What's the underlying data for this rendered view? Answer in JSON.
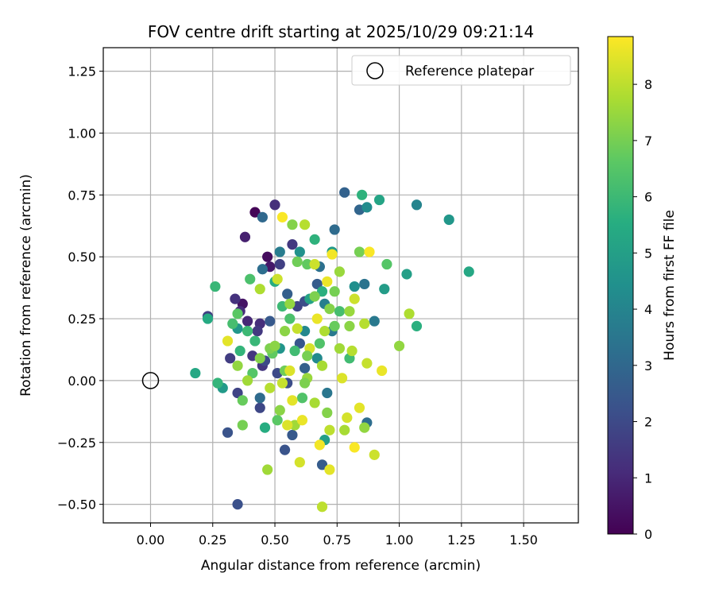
{
  "chart_data": {
    "type": "scatter",
    "title": "FOV centre drift starting at 2025/10/29 09:21:14",
    "xlabel": "Angular distance from reference (arcmin)",
    "ylabel": "Rotation from reference (arcmin)",
    "xlim": [
      -0.19,
      1.72
    ],
    "ylim": [
      -0.575,
      1.345
    ],
    "xticks": [
      0.0,
      0.25,
      0.5,
      0.75,
      1.0,
      1.25,
      1.5
    ],
    "xtick_labels": [
      "0.00",
      "0.25",
      "0.50",
      "0.75",
      "1.00",
      "1.25",
      "1.50"
    ],
    "yticks": [
      -0.5,
      -0.25,
      0.0,
      0.25,
      0.5,
      0.75,
      1.0,
      1.25
    ],
    "ytick_labels": [
      "−0.50",
      "−0.25",
      "0.00",
      "0.25",
      "0.50",
      "0.75",
      "1.00",
      "1.25"
    ],
    "grid": true,
    "legend": {
      "position": "top-right",
      "entries": [
        {
          "label": "Reference platepar",
          "marker": "open-circle"
        }
      ]
    },
    "reference_point": {
      "x": 0.0,
      "y": 0.0
    },
    "colorbar": {
      "label": "Hours from first FF file",
      "colormap": "viridis",
      "range": [
        0,
        8.85
      ],
      "ticks": [
        0,
        1,
        2,
        3,
        4,
        5,
        6,
        7,
        8
      ],
      "tick_labels": [
        "0",
        "1",
        "2",
        "3",
        "4",
        "5",
        "6",
        "7",
        "8"
      ]
    },
    "points": [
      {
        "x": 0.42,
        "y": 0.68,
        "t": 0.1
      },
      {
        "x": 0.47,
        "y": 0.5,
        "t": 0.3
      },
      {
        "x": 0.37,
        "y": 0.31,
        "t": 0.5
      },
      {
        "x": 0.48,
        "y": 0.46,
        "t": 0.6
      },
      {
        "x": 0.38,
        "y": 0.58,
        "t": 0.8
      },
      {
        "x": 0.39,
        "y": 0.24,
        "t": 1.0
      },
      {
        "x": 0.36,
        "y": 0.28,
        "t": 1.1
      },
      {
        "x": 0.5,
        "y": 0.71,
        "t": 1.2
      },
      {
        "x": 0.44,
        "y": 0.23,
        "t": 1.2
      },
      {
        "x": 0.34,
        "y": 0.33,
        "t": 1.3
      },
      {
        "x": 0.45,
        "y": 0.06,
        "t": 1.4
      },
      {
        "x": 0.41,
        "y": 0.1,
        "t": 1.4
      },
      {
        "x": 0.43,
        "y": 0.2,
        "t": 1.5
      },
      {
        "x": 0.57,
        "y": 0.55,
        "t": 1.5
      },
      {
        "x": 0.32,
        "y": 0.09,
        "t": 1.6
      },
      {
        "x": 0.23,
        "y": 0.26,
        "t": 1.7
      },
      {
        "x": 0.52,
        "y": 0.47,
        "t": 1.7
      },
      {
        "x": 0.35,
        "y": -0.05,
        "t": 1.8
      },
      {
        "x": 0.59,
        "y": 0.3,
        "t": 1.8
      },
      {
        "x": 0.44,
        "y": -0.11,
        "t": 1.9
      },
      {
        "x": 0.51,
        "y": 0.03,
        "t": 2.0
      },
      {
        "x": 0.46,
        "y": 0.08,
        "t": 2.0
      },
      {
        "x": 0.55,
        "y": -0.01,
        "t": 2.1
      },
      {
        "x": 0.62,
        "y": 0.32,
        "t": 2.1
      },
      {
        "x": 0.35,
        "y": -0.5,
        "t": 2.2
      },
      {
        "x": 0.54,
        "y": -0.28,
        "t": 2.3
      },
      {
        "x": 0.31,
        "y": -0.21,
        "t": 2.3
      },
      {
        "x": 0.6,
        "y": 0.15,
        "t": 2.4
      },
      {
        "x": 0.48,
        "y": 0.24,
        "t": 2.5
      },
      {
        "x": 0.57,
        "y": -0.22,
        "t": 2.5
      },
      {
        "x": 0.69,
        "y": -0.34,
        "t": 2.6
      },
      {
        "x": 0.67,
        "y": 0.39,
        "t": 2.6
      },
      {
        "x": 0.55,
        "y": 0.35,
        "t": 2.7
      },
      {
        "x": 0.62,
        "y": 0.05,
        "t": 2.7
      },
      {
        "x": 0.78,
        "y": 0.76,
        "t": 2.8
      },
      {
        "x": 0.84,
        "y": 0.69,
        "t": 2.9
      },
      {
        "x": 0.45,
        "y": 0.66,
        "t": 3.0
      },
      {
        "x": 0.74,
        "y": 0.61,
        "t": 3.1
      },
      {
        "x": 0.44,
        "y": -0.07,
        "t": 3.1
      },
      {
        "x": 0.45,
        "y": 0.45,
        "t": 3.2
      },
      {
        "x": 0.87,
        "y": -0.17,
        "t": 3.2
      },
      {
        "x": 0.68,
        "y": 0.46,
        "t": 3.3
      },
      {
        "x": 0.86,
        "y": 0.39,
        "t": 3.4
      },
      {
        "x": 0.71,
        "y": -0.05,
        "t": 3.5
      },
      {
        "x": 0.9,
        "y": 0.24,
        "t": 3.6
      },
      {
        "x": 0.73,
        "y": 0.2,
        "t": 3.6
      },
      {
        "x": 0.52,
        "y": 0.52,
        "t": 3.7
      },
      {
        "x": 0.7,
        "y": 0.31,
        "t": 3.8
      },
      {
        "x": 1.07,
        "y": 0.71,
        "t": 4.0
      },
      {
        "x": 0.62,
        "y": 0.2,
        "t": 4.1
      },
      {
        "x": 0.67,
        "y": 0.09,
        "t": 4.2
      },
      {
        "x": 0.87,
        "y": 0.7,
        "t": 4.3
      },
      {
        "x": 0.82,
        "y": 0.38,
        "t": 4.4
      },
      {
        "x": 0.6,
        "y": 0.52,
        "t": 4.5
      },
      {
        "x": 0.52,
        "y": 0.13,
        "t": 4.6
      },
      {
        "x": 1.2,
        "y": 0.65,
        "t": 4.7
      },
      {
        "x": 0.35,
        "y": 0.21,
        "t": 4.7
      },
      {
        "x": 0.29,
        "y": -0.03,
        "t": 4.8
      },
      {
        "x": 0.73,
        "y": 0.52,
        "t": 4.8
      },
      {
        "x": 0.94,
        "y": 0.37,
        "t": 4.9
      },
      {
        "x": 0.7,
        "y": -0.24,
        "t": 5.0
      },
      {
        "x": 1.03,
        "y": 0.43,
        "t": 5.0
      },
      {
        "x": 0.64,
        "y": 0.33,
        "t": 5.1
      },
      {
        "x": 0.92,
        "y": 0.73,
        "t": 5.2
      },
      {
        "x": 1.28,
        "y": 0.44,
        "t": 5.3
      },
      {
        "x": 0.18,
        "y": 0.03,
        "t": 5.3
      },
      {
        "x": 0.23,
        "y": 0.25,
        "t": 5.4
      },
      {
        "x": 0.46,
        "y": -0.19,
        "t": 5.5
      },
      {
        "x": 0.5,
        "y": 0.4,
        "t": 5.5
      },
      {
        "x": 0.69,
        "y": 0.36,
        "t": 5.6
      },
      {
        "x": 1.07,
        "y": 0.22,
        "t": 5.6
      },
      {
        "x": 0.66,
        "y": 0.57,
        "t": 5.7
      },
      {
        "x": 0.85,
        "y": 0.75,
        "t": 5.7
      },
      {
        "x": 0.27,
        "y": -0.01,
        "t": 5.8
      },
      {
        "x": 0.36,
        "y": 0.12,
        "t": 5.8
      },
      {
        "x": 0.42,
        "y": 0.16,
        "t": 5.9
      },
      {
        "x": 0.26,
        "y": 0.38,
        "t": 5.9
      },
      {
        "x": 0.39,
        "y": 0.2,
        "t": 6.0
      },
      {
        "x": 0.53,
        "y": 0.3,
        "t": 6.0
      },
      {
        "x": 0.58,
        "y": 0.12,
        "t": 6.1
      },
      {
        "x": 0.8,
        "y": 0.09,
        "t": 6.1
      },
      {
        "x": 0.76,
        "y": 0.28,
        "t": 6.2
      },
      {
        "x": 0.33,
        "y": 0.23,
        "t": 6.2
      },
      {
        "x": 0.4,
        "y": 0.41,
        "t": 6.3
      },
      {
        "x": 0.56,
        "y": 0.25,
        "t": 6.3
      },
      {
        "x": 0.61,
        "y": -0.07,
        "t": 6.4
      },
      {
        "x": 0.68,
        "y": 0.15,
        "t": 6.4
      },
      {
        "x": 0.41,
        "y": 0.03,
        "t": 6.5
      },
      {
        "x": 0.95,
        "y": 0.47,
        "t": 6.5
      },
      {
        "x": 0.51,
        "y": -0.16,
        "t": 6.6
      },
      {
        "x": 0.35,
        "y": 0.27,
        "t": 6.6
      },
      {
        "x": 0.49,
        "y": 0.11,
        "t": 6.7
      },
      {
        "x": 0.63,
        "y": 0.47,
        "t": 6.7
      },
      {
        "x": 0.74,
        "y": 0.22,
        "t": 6.8
      },
      {
        "x": 0.37,
        "y": -0.08,
        "t": 6.8
      },
      {
        "x": 0.59,
        "y": 0.48,
        "t": 6.9
      },
      {
        "x": 0.54,
        "y": 0.04,
        "t": 6.9
      },
      {
        "x": 0.84,
        "y": 0.52,
        "t": 7.0
      },
      {
        "x": 0.37,
        "y": -0.18,
        "t": 7.0
      },
      {
        "x": 0.66,
        "y": 0.34,
        "t": 7.1
      },
      {
        "x": 0.48,
        "y": 0.13,
        "t": 7.1
      },
      {
        "x": 0.72,
        "y": 0.29,
        "t": 7.2
      },
      {
        "x": 0.57,
        "y": 0.63,
        "t": 7.2
      },
      {
        "x": 0.8,
        "y": 0.22,
        "t": 7.3
      },
      {
        "x": 0.52,
        "y": -0.12,
        "t": 7.3
      },
      {
        "x": 1.0,
        "y": 0.14,
        "t": 7.4
      },
      {
        "x": 0.86,
        "y": -0.19,
        "t": 7.4
      },
      {
        "x": 0.63,
        "y": 0.01,
        "t": 7.5
      },
      {
        "x": 0.76,
        "y": 0.44,
        "t": 7.5
      },
      {
        "x": 0.47,
        "y": -0.36,
        "t": 7.6
      },
      {
        "x": 0.58,
        "y": -0.18,
        "t": 7.6
      },
      {
        "x": 0.69,
        "y": 0.06,
        "t": 7.7
      },
      {
        "x": 0.78,
        "y": -0.2,
        "t": 7.7
      },
      {
        "x": 1.04,
        "y": 0.27,
        "t": 7.8
      },
      {
        "x": 0.44,
        "y": 0.37,
        "t": 7.8
      },
      {
        "x": 0.62,
        "y": 0.63,
        "t": 7.9
      },
      {
        "x": 0.81,
        "y": 0.12,
        "t": 7.9
      },
      {
        "x": 0.69,
        "y": -0.51,
        "t": 8.0
      },
      {
        "x": 0.72,
        "y": -0.2,
        "t": 8.0
      },
      {
        "x": 0.87,
        "y": 0.07,
        "t": 8.1
      },
      {
        "x": 0.53,
        "y": -0.01,
        "t": 8.1
      },
      {
        "x": 0.66,
        "y": 0.47,
        "t": 8.2
      },
      {
        "x": 0.9,
        "y": -0.3,
        "t": 8.2
      },
      {
        "x": 0.6,
        "y": -0.33,
        "t": 8.3
      },
      {
        "x": 0.79,
        "y": -0.15,
        "t": 8.3
      },
      {
        "x": 0.56,
        "y": 0.04,
        "t": 8.4
      },
      {
        "x": 0.72,
        "y": -0.36,
        "t": 8.5
      },
      {
        "x": 0.84,
        "y": -0.11,
        "t": 8.5
      },
      {
        "x": 0.93,
        "y": 0.04,
        "t": 8.6
      },
      {
        "x": 0.61,
        "y": -0.16,
        "t": 8.6
      },
      {
        "x": 0.73,
        "y": 0.51,
        "t": 8.7
      },
      {
        "x": 0.68,
        "y": -0.26,
        "t": 8.7
      },
      {
        "x": 0.82,
        "y": -0.27,
        "t": 8.8
      },
      {
        "x": 0.88,
        "y": 0.52,
        "t": 8.8
      },
      {
        "x": 0.53,
        "y": 0.66,
        "t": 8.8
      },
      {
        "x": 0.31,
        "y": 0.16,
        "t": 8.5
      },
      {
        "x": 0.71,
        "y": 0.4,
        "t": 8.6
      },
      {
        "x": 0.55,
        "y": -0.18,
        "t": 8.4
      },
      {
        "x": 0.64,
        "y": 0.13,
        "t": 8.3
      },
      {
        "x": 0.82,
        "y": 0.33,
        "t": 8.2
      },
      {
        "x": 0.48,
        "y": -0.03,
        "t": 7.9
      },
      {
        "x": 0.7,
        "y": 0.2,
        "t": 7.8
      },
      {
        "x": 0.59,
        "y": 0.21,
        "t": 8.1
      },
      {
        "x": 0.77,
        "y": 0.01,
        "t": 8.4
      },
      {
        "x": 0.66,
        "y": -0.09,
        "t": 7.7
      },
      {
        "x": 0.5,
        "y": 0.14,
        "t": 7.3
      },
      {
        "x": 0.86,
        "y": 0.23,
        "t": 7.9
      },
      {
        "x": 0.76,
        "y": 0.13,
        "t": 7.6
      },
      {
        "x": 0.35,
        "y": 0.06,
        "t": 7.4
      },
      {
        "x": 0.57,
        "y": -0.08,
        "t": 8.5
      },
      {
        "x": 0.62,
        "y": -0.01,
        "t": 7.1
      },
      {
        "x": 0.44,
        "y": 0.09,
        "t": 7.2
      },
      {
        "x": 0.51,
        "y": 0.41,
        "t": 8.2
      },
      {
        "x": 0.74,
        "y": 0.36,
        "t": 7.0
      },
      {
        "x": 0.67,
        "y": 0.25,
        "t": 8.6
      },
      {
        "x": 0.8,
        "y": 0.28,
        "t": 7.5
      },
      {
        "x": 0.54,
        "y": 0.2,
        "t": 7.3
      },
      {
        "x": 0.63,
        "y": 0.1,
        "t": 7.0
      },
      {
        "x": 0.71,
        "y": -0.13,
        "t": 7.2
      },
      {
        "x": 0.39,
        "y": 0.0,
        "t": 7.6
      },
      {
        "x": 0.56,
        "y": 0.31,
        "t": 7.4
      }
    ]
  }
}
